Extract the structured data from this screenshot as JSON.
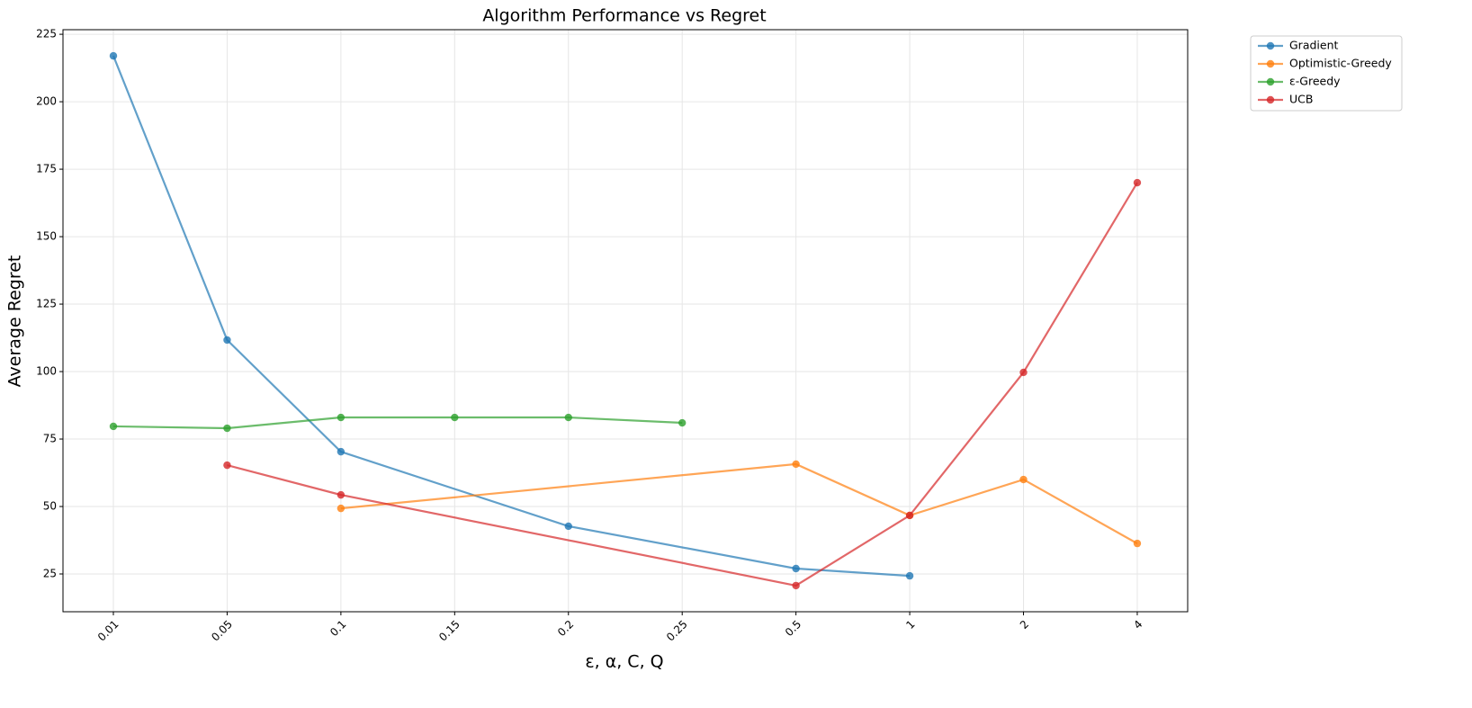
{
  "chart_data": {
    "type": "line",
    "title": "Algorithm Performance vs Regret",
    "x_label": "ε, α, C, Q",
    "y_label": "Average Regret",
    "categories": [
      "0.01",
      "0.05",
      "0.1",
      "0.15",
      "0.2",
      "0.25",
      "0.5",
      "1",
      "2",
      "4"
    ],
    "series": [
      {
        "name": "Gradient",
        "color": "#1f77b4",
        "x": [
          "0.01",
          "0.05",
          "0.1",
          "0.2",
          "0.5",
          "1"
        ],
        "values": [
          217,
          111.7,
          70.3,
          42.7,
          27,
          24.3
        ]
      },
      {
        "name": "Optimistic-Greedy",
        "color": "#ff7f0e",
        "x": [
          "0.1",
          "0.5",
          "1",
          "2",
          "4"
        ],
        "values": [
          49.3,
          65.7,
          46.7,
          60,
          36.3
        ]
      },
      {
        "name": "ε-Greedy",
        "color": "#2ca02c",
        "x": [
          "0.01",
          "0.05",
          "0.1",
          "0.15",
          "0.2",
          "0.25"
        ],
        "values": [
          79.7,
          79,
          83,
          83,
          83,
          81
        ]
      },
      {
        "name": "UCB",
        "color": "#d62728",
        "x": [
          "0.05",
          "0.1",
          "0.5",
          "1",
          "2",
          "4"
        ],
        "values": [
          65.3,
          54.3,
          20.7,
          46.7,
          99.7,
          170
        ]
      }
    ],
    "ylim": [
      11,
      226.7
    ],
    "yticks": [
      25,
      50,
      75,
      100,
      125,
      150,
      175,
      200,
      225
    ],
    "grid": true,
    "legend": "outside upper right"
  }
}
